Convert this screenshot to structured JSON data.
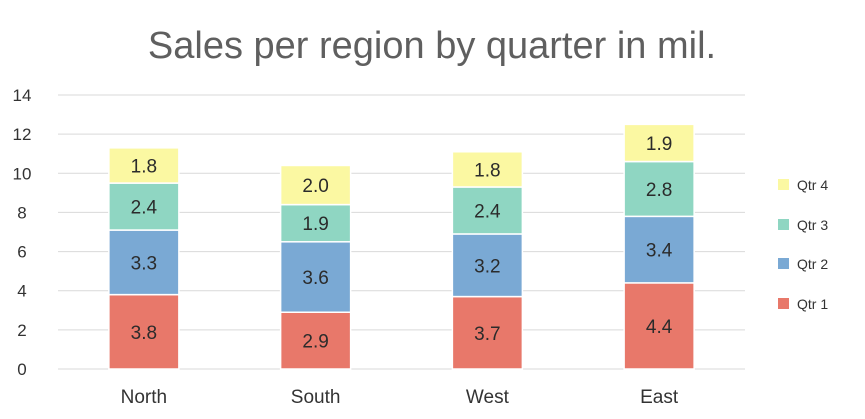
{
  "chart_data": {
    "type": "bar",
    "stacked": true,
    "title": "Sales per region by quarter in mil.",
    "xlabel": "",
    "ylabel": "",
    "categories": [
      "North",
      "South",
      "West",
      "East"
    ],
    "ylim": [
      0,
      14
    ],
    "yticks": [
      0,
      2,
      4,
      6,
      8,
      10,
      12,
      14
    ],
    "yticks_labels": [
      "0",
      "2",
      "4",
      "6",
      "8",
      "10",
      "12",
      "14"
    ],
    "grid": true,
    "legend_position": "right",
    "series": [
      {
        "name": "Qtr 1",
        "color": "#e8786a",
        "values": [
          3.8,
          2.9,
          3.7,
          4.4
        ],
        "labels": [
          "3.8",
          "2.9",
          "3.7",
          "4.4"
        ]
      },
      {
        "name": "Qtr 2",
        "color": "#7aa9d4",
        "values": [
          3.3,
          3.6,
          3.2,
          3.4
        ],
        "labels": [
          "3.3",
          "3.6",
          "3.2",
          "3.4"
        ]
      },
      {
        "name": "Qtr 3",
        "color": "#8fd6c2",
        "values": [
          2.4,
          1.9,
          2.4,
          2.8
        ],
        "labels": [
          "2.4",
          "1.9",
          "2.4",
          "2.8"
        ]
      },
      {
        "name": "Qtr 4",
        "color": "#fbf8a2",
        "values": [
          1.8,
          2.0,
          1.8,
          1.9
        ],
        "labels": [
          "1.8",
          "2.0",
          "1.8",
          "1.9"
        ]
      }
    ]
  }
}
